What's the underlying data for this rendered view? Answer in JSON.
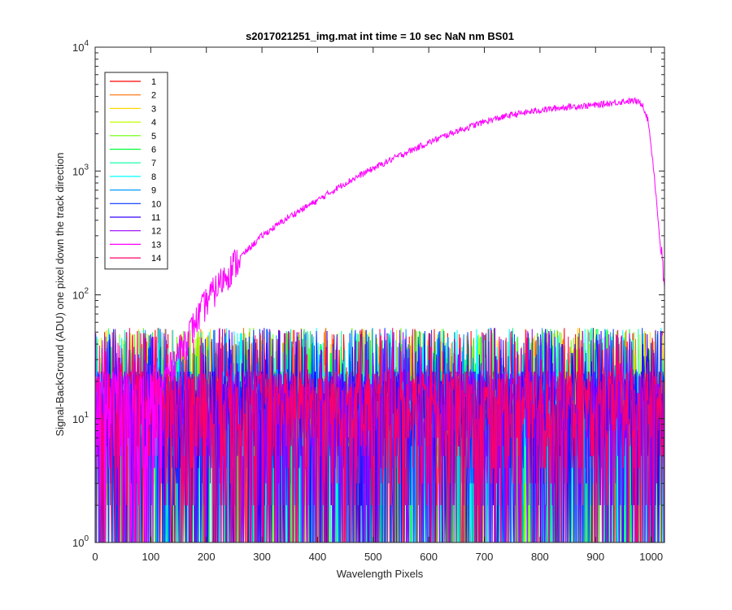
{
  "chart_data": {
    "type": "line",
    "title": "s2017021251_img.mat int time = 10 sec  NaN nm BS01",
    "xlabel": "Wavelength Pixels",
    "ylabel": "Signal-BackGround (ADU) one pixel down the track direction",
    "xlim": [
      0,
      1024
    ],
    "ylim": [
      1,
      10000
    ],
    "yscale": "log",
    "x_ticks": [
      "0",
      "100",
      "200",
      "300",
      "400",
      "500",
      "600",
      "700",
      "800",
      "900",
      "1000"
    ],
    "x_tick_values": [
      0,
      100,
      200,
      300,
      400,
      500,
      600,
      700,
      800,
      900,
      1000
    ],
    "y_tick_values": [
      1,
      10,
      100,
      1000,
      10000
    ],
    "y_ticks": [
      {
        "base": "10",
        "exp": "0"
      },
      {
        "base": "10",
        "exp": "1"
      },
      {
        "base": "10",
        "exp": "2"
      },
      {
        "base": "10",
        "exp": "3"
      },
      {
        "base": "10",
        "exp": "4"
      }
    ],
    "grid": false,
    "legend_position": "top-left",
    "noise_series": {
      "description_range_y": [
        1,
        55
      ],
      "typical_y": 10
    },
    "signal_series_index": 12,
    "signal_profile": [
      {
        "x": 120,
        "y": 20
      },
      {
        "x": 150,
        "y": 35
      },
      {
        "x": 175,
        "y": 55
      },
      {
        "x": 200,
        "y": 90
      },
      {
        "x": 250,
        "y": 180
      },
      {
        "x": 300,
        "y": 300
      },
      {
        "x": 350,
        "y": 430
      },
      {
        "x": 400,
        "y": 580
      },
      {
        "x": 450,
        "y": 800
      },
      {
        "x": 500,
        "y": 1050
      },
      {
        "x": 550,
        "y": 1350
      },
      {
        "x": 600,
        "y": 1700
      },
      {
        "x": 650,
        "y": 2100
      },
      {
        "x": 700,
        "y": 2500
      },
      {
        "x": 750,
        "y": 2850
      },
      {
        "x": 800,
        "y": 3100
      },
      {
        "x": 850,
        "y": 3300
      },
      {
        "x": 900,
        "y": 3400
      },
      {
        "x": 950,
        "y": 3650
      },
      {
        "x": 970,
        "y": 3700
      },
      {
        "x": 985,
        "y": 3450
      },
      {
        "x": 995,
        "y": 2500
      },
      {
        "x": 1005,
        "y": 1000
      },
      {
        "x": 1015,
        "y": 300
      },
      {
        "x": 1024,
        "y": 110
      }
    ],
    "series": [
      {
        "name": "1",
        "color": "#ff0000"
      },
      {
        "name": "2",
        "color": "#ff6e00"
      },
      {
        "name": "3",
        "color": "#ffd700"
      },
      {
        "name": "4",
        "color": "#bfff00"
      },
      {
        "name": "5",
        "color": "#66ff00"
      },
      {
        "name": "6",
        "color": "#00ff3a"
      },
      {
        "name": "7",
        "color": "#00ffa0"
      },
      {
        "name": "8",
        "color": "#00ffff"
      },
      {
        "name": "9",
        "color": "#0099ff"
      },
      {
        "name": "10",
        "color": "#0033ff"
      },
      {
        "name": "11",
        "color": "#3300ff"
      },
      {
        "name": "12",
        "color": "#9900ff"
      },
      {
        "name": "13",
        "color": "#ff00ff"
      },
      {
        "name": "14",
        "color": "#ff0066"
      }
    ]
  }
}
